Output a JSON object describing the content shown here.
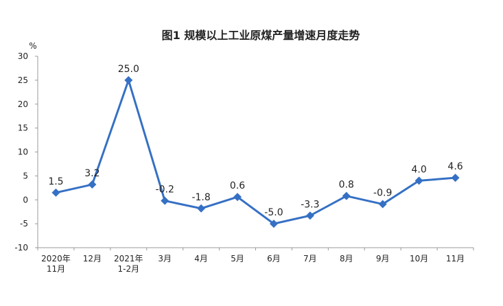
{
  "chart_data": {
    "type": "line",
    "title": "图1  规模以上工业原煤产量增速月度走势",
    "y_unit": "%",
    "categories": [
      "2020年\n11月",
      "12月",
      "2021年\n1-2月",
      "3月",
      "4月",
      "5月",
      "6月",
      "7月",
      "8月",
      "9月",
      "10月",
      "11月"
    ],
    "values": [
      1.5,
      3.2,
      25.0,
      -0.2,
      -1.8,
      0.6,
      -5.0,
      -3.3,
      0.8,
      -0.9,
      4.0,
      4.6
    ],
    "value_labels": [
      "1.5",
      "3.2",
      "25.0",
      "-0.2",
      "-1.8",
      "0.6",
      "-5.0",
      "-3.3",
      "0.8",
      "-0.9",
      "4.0",
      "4.6"
    ],
    "color": "#3570c4",
    "ylim": [
      -10,
      30
    ],
    "yticks": [
      -10,
      -5,
      0,
      5,
      10,
      15,
      20,
      25,
      30
    ],
    "grid": false
  }
}
